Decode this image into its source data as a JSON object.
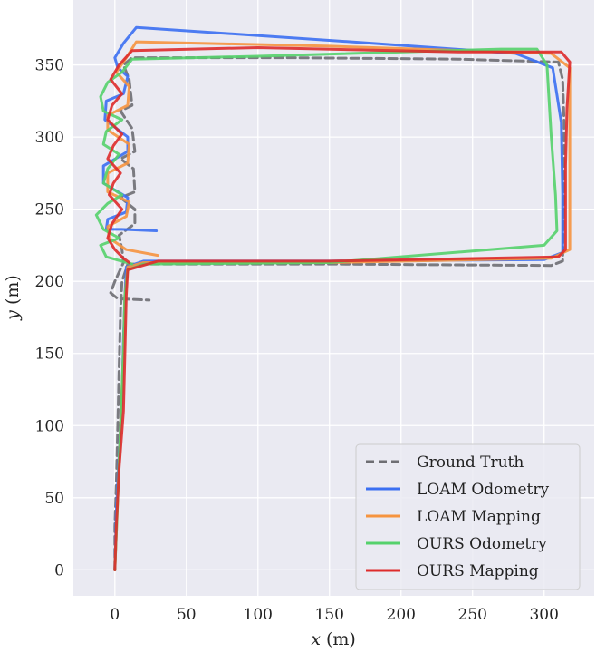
{
  "chart_data": {
    "type": "line",
    "title": "",
    "xlabel_var": "x",
    "xlabel_unit": " (m)",
    "ylabel_var": "y",
    "ylabel_unit": " (m)",
    "xlim": [
      -29,
      335
    ],
    "ylim": [
      -18,
      395
    ],
    "xticks": [
      0,
      50,
      100,
      150,
      200,
      250,
      300
    ],
    "yticks": [
      0,
      50,
      100,
      150,
      200,
      250,
      300,
      350
    ],
    "grid": true,
    "legend_position": "lower-right",
    "colors": {
      "background": "#EAEAF2",
      "grid": "#FFFFFF",
      "ground_truth": "#6E6E73",
      "loam_odometry": "#3B6FF2",
      "loam_mapping": "#F6943F",
      "ours_odometry": "#55D16C",
      "ours_mapping": "#DE2B2B"
    },
    "series": [
      {
        "name": "Ground Truth",
        "color_key": "ground_truth",
        "dashed": true,
        "points": [
          [
            0,
            0
          ],
          [
            0,
            30
          ],
          [
            1,
            60
          ],
          [
            2,
            100
          ],
          [
            3,
            140
          ],
          [
            4,
            180
          ],
          [
            5,
            200
          ],
          [
            9,
            212
          ],
          [
            25,
            212
          ],
          [
            150,
            212
          ],
          [
            305,
            211
          ],
          [
            313,
            214
          ],
          [
            314,
            260
          ],
          [
            314,
            310
          ],
          [
            313,
            340
          ],
          [
            310,
            352
          ],
          [
            240,
            354
          ],
          [
            120,
            355
          ],
          [
            12,
            355
          ],
          [
            6,
            350
          ],
          [
            10,
            340
          ],
          [
            12,
            322
          ],
          [
            4,
            318
          ],
          [
            12,
            306
          ],
          [
            14,
            290
          ],
          [
            4,
            285
          ],
          [
            13,
            278
          ],
          [
            14,
            262
          ],
          [
            4,
            258
          ],
          [
            14,
            250
          ],
          [
            14,
            240
          ],
          [
            3,
            232
          ],
          [
            5,
            222
          ],
          [
            6,
            213
          ],
          [
            0,
            200
          ],
          [
            -3,
            192
          ],
          [
            2,
            188
          ],
          [
            24,
            187
          ]
        ]
      },
      {
        "name": "LOAM Odometry",
        "color_key": "loam_odometry",
        "dashed": false,
        "points": [
          [
            0,
            0
          ],
          [
            1,
            40
          ],
          [
            3,
            80
          ],
          [
            5,
            120
          ],
          [
            6,
            160
          ],
          [
            7,
            190
          ],
          [
            8,
            210
          ],
          [
            20,
            214
          ],
          [
            150,
            214
          ],
          [
            300,
            215
          ],
          [
            313,
            220
          ],
          [
            313,
            260
          ],
          [
            312,
            310
          ],
          [
            306,
            348
          ],
          [
            280,
            358
          ],
          [
            180,
            365
          ],
          [
            15,
            376
          ],
          [
            6,
            365
          ],
          [
            0,
            355
          ],
          [
            2,
            348
          ],
          [
            9,
            342
          ],
          [
            6,
            330
          ],
          [
            -6,
            325
          ],
          [
            -7,
            312
          ],
          [
            9,
            300
          ],
          [
            9,
            290
          ],
          [
            -8,
            280
          ],
          [
            -8,
            268
          ],
          [
            9,
            258
          ],
          [
            8,
            248
          ],
          [
            -5,
            243
          ],
          [
            -6,
            236
          ],
          [
            5,
            236
          ],
          [
            29,
            235
          ]
        ]
      },
      {
        "name": "LOAM Mapping",
        "color_key": "loam_mapping",
        "dashed": false,
        "points": [
          [
            0,
            0
          ],
          [
            2,
            50
          ],
          [
            4,
            100
          ],
          [
            6,
            150
          ],
          [
            7,
            190
          ],
          [
            9,
            210
          ],
          [
            20,
            213
          ],
          [
            150,
            213
          ],
          [
            305,
            216
          ],
          [
            318,
            222
          ],
          [
            318,
            300
          ],
          [
            318,
            348
          ],
          [
            305,
            358
          ],
          [
            150,
            363
          ],
          [
            15,
            366
          ],
          [
            8,
            355
          ],
          [
            1,
            345
          ],
          [
            10,
            335
          ],
          [
            9,
            322
          ],
          [
            -5,
            315
          ],
          [
            -5,
            305
          ],
          [
            10,
            295
          ],
          [
            9,
            282
          ],
          [
            -5,
            275
          ],
          [
            -5,
            262
          ],
          [
            10,
            255
          ],
          [
            8,
            245
          ],
          [
            -5,
            238
          ],
          [
            -4,
            230
          ],
          [
            8,
            222
          ],
          [
            30,
            218
          ]
        ]
      },
      {
        "name": "OURS Odometry",
        "color_key": "ours_odometry",
        "dashed": false,
        "points": [
          [
            0,
            0
          ],
          [
            2,
            50
          ],
          [
            4,
            100
          ],
          [
            6,
            150
          ],
          [
            7,
            190
          ],
          [
            9,
            208
          ],
          [
            20,
            212
          ],
          [
            150,
            213
          ],
          [
            300,
            225
          ],
          [
            309,
            235
          ],
          [
            308,
            260
          ],
          [
            305,
            300
          ],
          [
            302,
            350
          ],
          [
            295,
            361
          ],
          [
            270,
            361
          ],
          [
            100,
            356
          ],
          [
            12,
            354
          ],
          [
            5,
            345
          ],
          [
            -5,
            338
          ],
          [
            -10,
            328
          ],
          [
            -8,
            318
          ],
          [
            5,
            312
          ],
          [
            -6,
            304
          ],
          [
            -8,
            295
          ],
          [
            3,
            288
          ],
          [
            -5,
            278
          ],
          [
            -8,
            268
          ],
          [
            5,
            260
          ],
          [
            -5,
            254
          ],
          [
            -13,
            246
          ],
          [
            -8,
            236
          ],
          [
            3,
            230
          ],
          [
            -10,
            225
          ],
          [
            -6,
            217
          ],
          [
            12,
            212
          ]
        ]
      },
      {
        "name": "OURS Mapping",
        "color_key": "ours_mapping",
        "dashed": false,
        "points": [
          [
            0,
            0
          ],
          [
            1,
            30
          ],
          [
            3,
            70
          ],
          [
            6,
            110
          ],
          [
            7,
            150
          ],
          [
            8,
            190
          ],
          [
            9,
            208
          ],
          [
            30,
            214
          ],
          [
            150,
            214
          ],
          [
            310,
            217
          ],
          [
            315,
            222
          ],
          [
            315,
            280
          ],
          [
            316,
            320
          ],
          [
            318,
            352
          ],
          [
            312,
            359
          ],
          [
            240,
            359
          ],
          [
            100,
            362
          ],
          [
            12,
            360
          ],
          [
            3,
            350
          ],
          [
            -3,
            340
          ],
          [
            5,
            330
          ],
          [
            -2,
            322
          ],
          [
            -5,
            312
          ],
          [
            5,
            302
          ],
          [
            -1,
            294
          ],
          [
            -5,
            285
          ],
          [
            4,
            275
          ],
          [
            -1,
            268
          ],
          [
            -4,
            260
          ],
          [
            5,
            250
          ],
          [
            -2,
            240
          ],
          [
            -5,
            230
          ],
          [
            0,
            222
          ],
          [
            6,
            216
          ],
          [
            10,
            213
          ]
        ]
      }
    ],
    "legend": [
      {
        "label": "Ground Truth",
        "color_key": "ground_truth",
        "dashed": true
      },
      {
        "label": "LOAM Odometry",
        "color_key": "loam_odometry",
        "dashed": false
      },
      {
        "label": "LOAM Mapping",
        "color_key": "loam_mapping",
        "dashed": false
      },
      {
        "label": "OURS Odometry",
        "color_key": "ours_odometry",
        "dashed": false
      },
      {
        "label": "OURS Mapping",
        "color_key": "ours_mapping",
        "dashed": false
      }
    ]
  }
}
